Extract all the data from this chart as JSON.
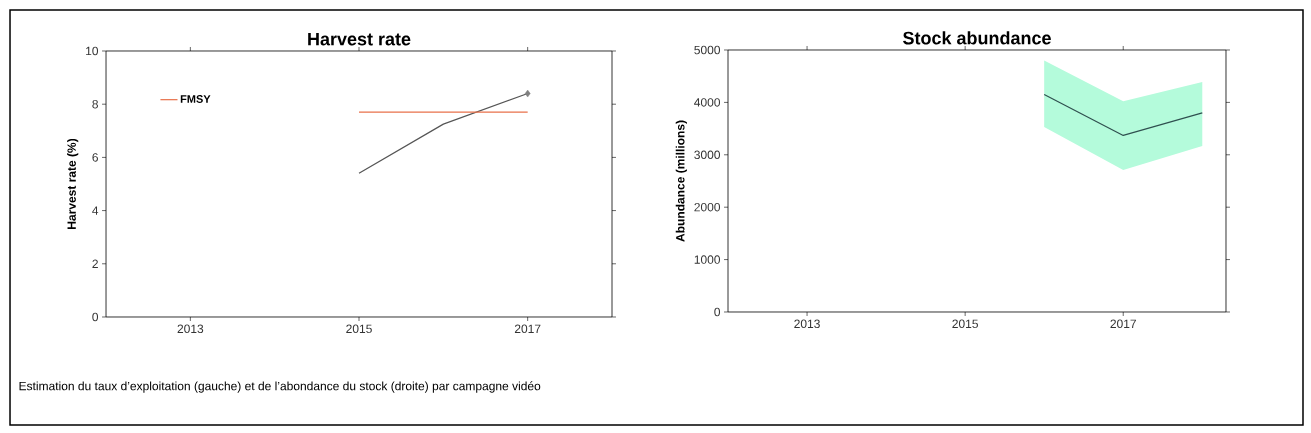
{
  "chart_data": [
    {
      "type": "line",
      "title": "Harvest rate",
      "ylabel": "Harvest rate (%)",
      "xlim": [
        2012,
        2018
      ],
      "xticks": [
        2013,
        2015,
        2017
      ],
      "ylim": [
        0,
        10
      ],
      "yticks": [
        0,
        2,
        4,
        6,
        8,
        10
      ],
      "legend": "top left",
      "series": [
        {
          "color": "#555555",
          "x": [
            2015,
            2016,
            2017
          ],
          "values": [
            5.4,
            7.25,
            8.4
          ]
        },
        {
          "type": "scatter",
          "marker": "diamond",
          "color": "#808080",
          "x": [
            2017
          ],
          "values": [
            8.4
          ]
        },
        {
          "name": "FMSY",
          "color": "#e8704a",
          "x": [
            2015,
            2017
          ],
          "values": [
            7.7,
            7.7
          ]
        }
      ],
      "annotations": [
        "Estimation du taux d’exploitation (gauche) et de l’abondance du stock (droite) par campagne vidéo"
      ]
    },
    {
      "type": "line",
      "title": "Stock abundance",
      "ylabel": "Abundance (millions)",
      "xlim": [
        2012,
        2018.3
      ],
      "xticks": [
        2013,
        2015,
        2017
      ],
      "ylim": [
        0,
        5000
      ],
      "yticks": [
        0,
        1000,
        2000,
        3000,
        4000,
        5000
      ],
      "series": [
        {
          "color": "#2f4f4f",
          "x": [
            2016,
            2017,
            2018
          ],
          "values": [
            4150,
            3370,
            3800
          ],
          "lower": [
            3530,
            2710,
            3170
          ],
          "upper": [
            4800,
            4020,
            4390
          ]
        }
      ]
    }
  ]
}
